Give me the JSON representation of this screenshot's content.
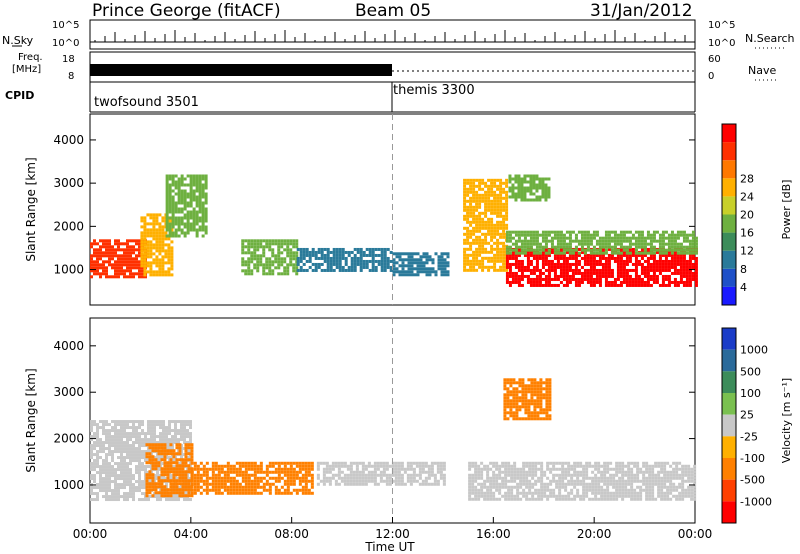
{
  "header": {
    "station": "Prince George (fitACF)",
    "beam": "Beam 05",
    "date": "31/Jan/2012"
  },
  "top_panel": {
    "left_label": "N.Sky",
    "right_label": "N.Search",
    "left_ticks": [
      "10^5",
      "10^0"
    ],
    "right_ticks": [
      "10^5",
      "10^0"
    ]
  },
  "freq_panel": {
    "left_label_line1": "Freq.",
    "left_label_line2": "[MHz]",
    "left_ticks": [
      "18",
      "8"
    ],
    "right_label": "Nave",
    "right_ticks": [
      "60",
      "0"
    ]
  },
  "cpid_panel": {
    "label": "CPID",
    "modes": [
      {
        "name": "twofsound 3501",
        "start_hour": 0,
        "end_hour": 12
      },
      {
        "name": "themis 3300",
        "start_hour": 12,
        "end_hour": 24
      }
    ]
  },
  "chart_data": [
    {
      "type": "heatmap",
      "title": "",
      "xlabel": "",
      "ylabel": "Slant Range [km]",
      "xlim": [
        0,
        24
      ],
      "ylim": [
        180,
        4600
      ],
      "y_ticks": [
        "1000",
        "2000",
        "3000",
        "4000"
      ],
      "colorbar": {
        "label": "Power [dB]",
        "ticks": [
          "4",
          "8",
          "12",
          "16",
          "20",
          "24",
          "28"
        ],
        "colors": [
          "#1a1aff",
          "#1e50c8",
          "#2a7a9a",
          "#3c8c5a",
          "#6eb040",
          "#c8d02a",
          "#ffb000",
          "#ff7800",
          "#ff3000",
          "#ff0000"
        ],
        "range": [
          0,
          30
        ]
      },
      "regions": [
        {
          "t0": 0.0,
          "t1": 2.2,
          "r0": 800,
          "r1": 1700,
          "level": 24
        },
        {
          "t0": 2.0,
          "t1": 3.2,
          "r0": 900,
          "r1": 2300,
          "level": 20
        },
        {
          "t0": 3.0,
          "t1": 4.6,
          "r0": 1800,
          "r1": 3200,
          "level": 12
        },
        {
          "t0": 6.0,
          "t1": 8.2,
          "r0": 900,
          "r1": 1700,
          "level": 14
        },
        {
          "t0": 8.2,
          "t1": 12.0,
          "r0": 1000,
          "r1": 1500,
          "level": 6
        },
        {
          "t0": 12.0,
          "t1": 14.2,
          "r0": 900,
          "r1": 1400,
          "level": 6
        },
        {
          "t0": 14.8,
          "t1": 16.5,
          "r0": 1000,
          "r1": 3100,
          "level": 18
        },
        {
          "t0": 16.5,
          "t1": 24.0,
          "r0": 600,
          "r1": 1500,
          "level": 28
        },
        {
          "t0": 16.5,
          "t1": 24.0,
          "r0": 1400,
          "r1": 1900,
          "level": 14
        },
        {
          "t0": 16.6,
          "t1": 18.2,
          "r0": 2600,
          "r1": 3200,
          "level": 14
        }
      ]
    },
    {
      "type": "heatmap",
      "title": "",
      "xlabel": "Time UT",
      "ylabel": "Slant Range [km]",
      "xlim": [
        0,
        24
      ],
      "ylim": [
        180,
        4600
      ],
      "x_ticks": [
        "00:00",
        "04:00",
        "08:00",
        "12:00",
        "16:00",
        "20:00",
        "00:00"
      ],
      "y_ticks": [
        "1000",
        "2000",
        "3000",
        "4000"
      ],
      "colorbar": {
        "label": "Velocity [m s⁻¹]",
        "ticks": [
          "1000",
          "500",
          "100",
          "25",
          "-25",
          "-100",
          "-500",
          "-1000"
        ],
        "colors": [
          "#1a3cc8",
          "#2a6a9a",
          "#3c8c5a",
          "#7ac050",
          "#c8c8c8",
          "#ffb000",
          "#ff8000",
          "#ff4000",
          "#ff0000"
        ]
      },
      "regions": [
        {
          "t0": 0.0,
          "t1": 4.0,
          "r0": 700,
          "r1": 2400,
          "class": "ground"
        },
        {
          "t0": 2.2,
          "t1": 4.0,
          "r0": 800,
          "r1": 1900,
          "class": "-100"
        },
        {
          "t0": 4.0,
          "t1": 8.8,
          "r0": 800,
          "r1": 1500,
          "class": "-100"
        },
        {
          "t0": 9.0,
          "t1": 14.0,
          "r0": 1000,
          "r1": 1500,
          "class": "ground"
        },
        {
          "t0": 15.0,
          "t1": 24.0,
          "r0": 700,
          "r1": 1500,
          "class": "ground"
        },
        {
          "t0": 16.4,
          "t1": 18.2,
          "r0": 2400,
          "r1": 3300,
          "class": "-100"
        }
      ]
    }
  ]
}
